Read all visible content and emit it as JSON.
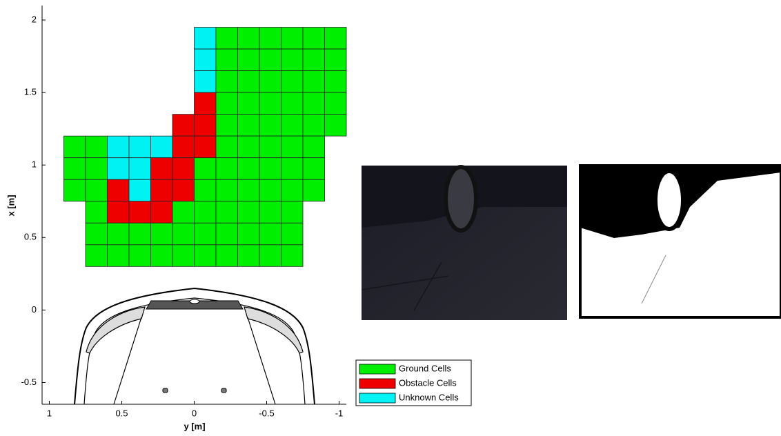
{
  "chart_data": {
    "type": "grid",
    "xlabel": "y  [m]",
    "ylabel": "x  [m]",
    "xlim": [
      1.05,
      -1.05
    ],
    "ylim": [
      -0.65,
      2.1
    ],
    "xticks": [
      1,
      0.5,
      0,
      -0.5,
      -1
    ],
    "yticks": [
      -0.5,
      0,
      0.5,
      1,
      1.5,
      2
    ],
    "series": [
      {
        "name": "Ground Cells",
        "color": "#00ee00"
      },
      {
        "name": "Obstacle Cells",
        "color": "#ee0000"
      },
      {
        "name": "Unknown Cells",
        "color": "#00f2f2"
      }
    ],
    "grid": {
      "cell_size": 0.15,
      "y_start": 0.9,
      "rows": [
        {
          "x": 1.8,
          "states": [
            null,
            null,
            null,
            null,
            null,
            null,
            2,
            0,
            0,
            0,
            0,
            0,
            0
          ]
        },
        {
          "x": 1.65,
          "states": [
            null,
            null,
            null,
            null,
            null,
            null,
            2,
            0,
            0,
            0,
            0,
            0,
            0
          ]
        },
        {
          "x": 1.5,
          "states": [
            null,
            null,
            null,
            null,
            null,
            null,
            2,
            0,
            0,
            0,
            0,
            0,
            0
          ]
        },
        {
          "x": 1.35,
          "states": [
            null,
            null,
            null,
            null,
            null,
            null,
            1,
            0,
            0,
            0,
            0,
            0,
            0
          ]
        },
        {
          "x": 1.2,
          "states": [
            null,
            null,
            null,
            null,
            null,
            1,
            1,
            0,
            0,
            0,
            0,
            0,
            0
          ]
        },
        {
          "x": 1.05,
          "states": [
            0,
            0,
            2,
            2,
            2,
            1,
            1,
            0,
            0,
            0,
            0,
            0,
            null
          ]
        },
        {
          "x": 0.9,
          "states": [
            0,
            0,
            2,
            2,
            1,
            1,
            0,
            0,
            0,
            0,
            0,
            0,
            null
          ]
        },
        {
          "x": 0.75,
          "states": [
            0,
            0,
            1,
            2,
            1,
            1,
            0,
            0,
            0,
            0,
            0,
            0,
            null
          ]
        },
        {
          "x": 0.6,
          "states": [
            null,
            0,
            1,
            1,
            1,
            0,
            0,
            0,
            0,
            0,
            0,
            null,
            null
          ]
        },
        {
          "x": 0.45,
          "states": [
            null,
            0,
            0,
            0,
            0,
            0,
            0,
            0,
            0,
            0,
            0,
            null,
            null
          ]
        },
        {
          "x": 0.3,
          "states": [
            null,
            0,
            0,
            0,
            0,
            0,
            0,
            0,
            0,
            0,
            0,
            null,
            null
          ]
        }
      ]
    }
  }
}
